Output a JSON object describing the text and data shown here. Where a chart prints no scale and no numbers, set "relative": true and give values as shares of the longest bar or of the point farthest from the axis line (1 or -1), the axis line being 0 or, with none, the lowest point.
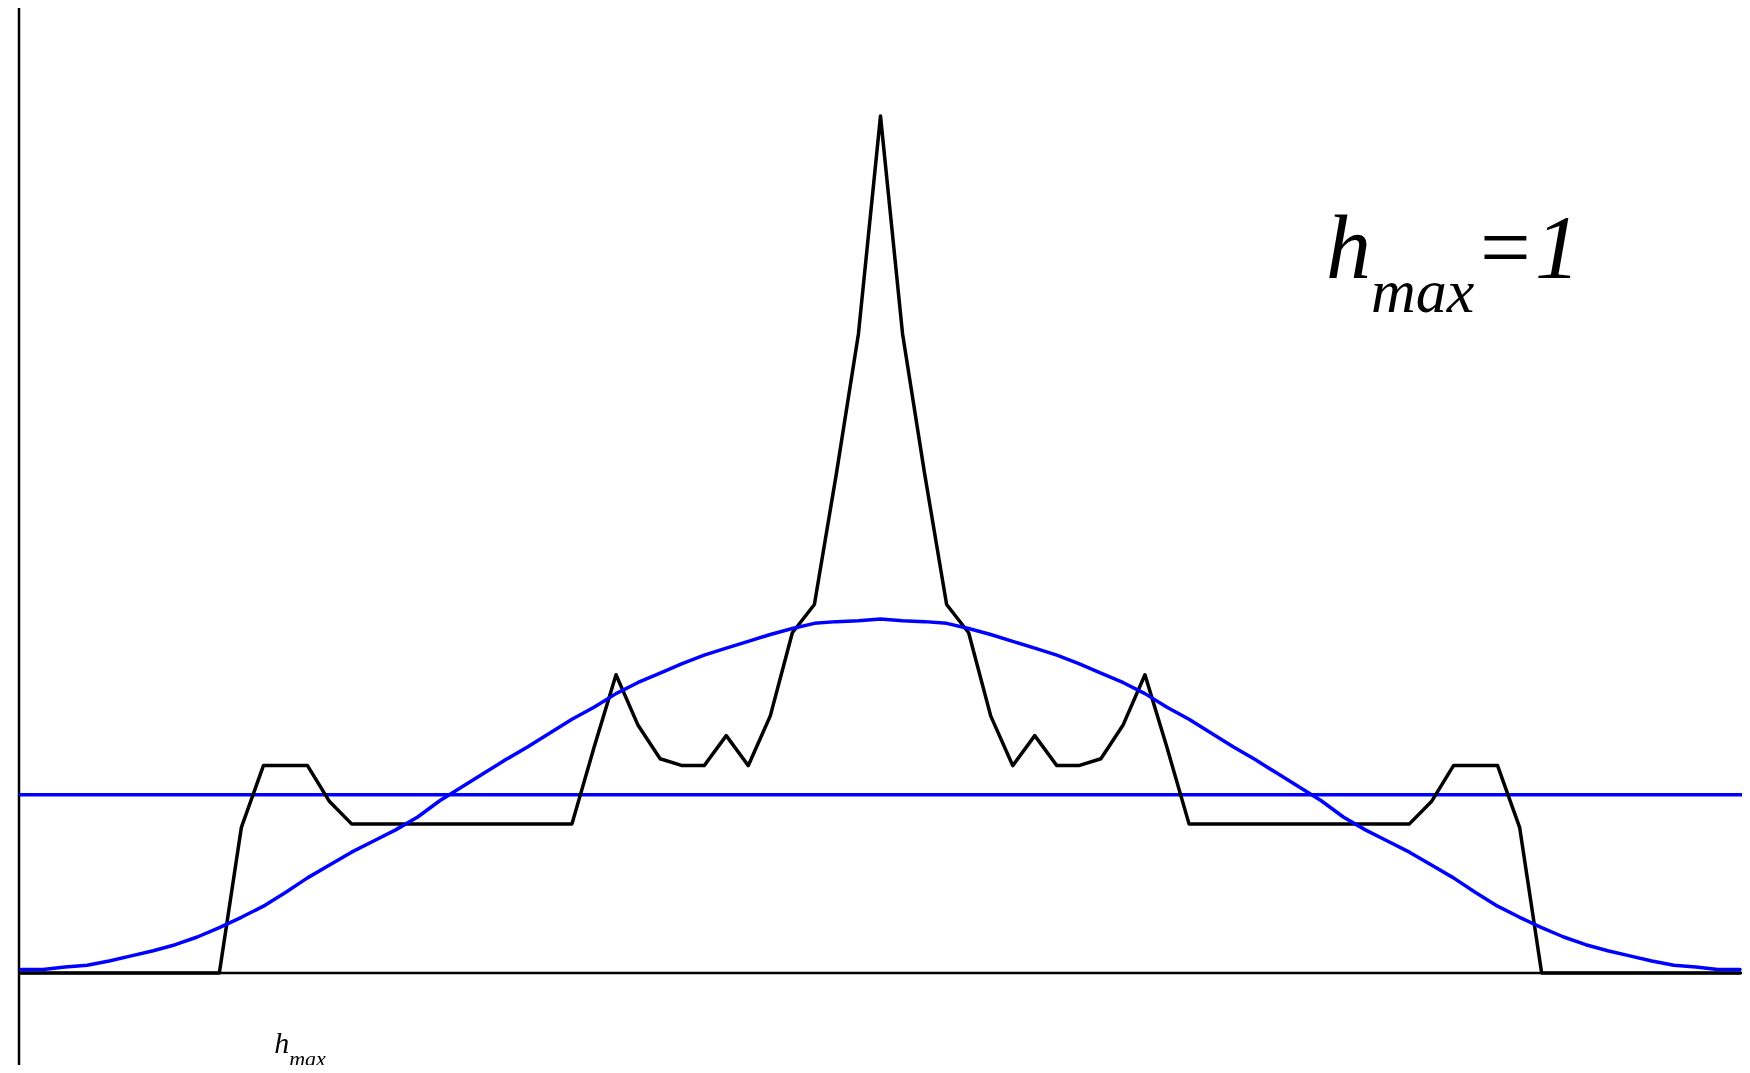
{
  "chart_data": {
    "type": "line",
    "relative": true,
    "categories": [
      null,
      null,
      null,
      null,
      null,
      null,
      null,
      null,
      null,
      null,
      null,
      null,
      null,
      null,
      null,
      null,
      null,
      null,
      null,
      null,
      null,
      null,
      null,
      null,
      null,
      null,
      null,
      null,
      null,
      null,
      null,
      null,
      null,
      null,
      null,
      null,
      null,
      null,
      null,
      null,
      null,
      null,
      null,
      null,
      null,
      null,
      null,
      null,
      null,
      null,
      null,
      null,
      null,
      null,
      null,
      null,
      null,
      null,
      null,
      null,
      null,
      null,
      null,
      null,
      null,
      null,
      null,
      null,
      null,
      null,
      null,
      null,
      null,
      null,
      null,
      null,
      null,
      null,
      null
    ],
    "series": [
      {
        "color": "#000000",
        "values": [
          0,
          0,
          0,
          0,
          0,
          0,
          0,
          0,
          0,
          0,
          0.17,
          0.242,
          0.242,
          0.242,
          0.2,
          0.174,
          0.174,
          0.174,
          0.174,
          0.174,
          0.174,
          0.174,
          0.174,
          0.174,
          0.174,
          0.174,
          0.263,
          0.348,
          0.289,
          0.25,
          0.242,
          0.242,
          0.277,
          0.242,
          0.3,
          0.397,
          0.43,
          0.583,
          0.746,
          1,
          0.746,
          0.583,
          0.43,
          0.397,
          0.3,
          0.242,
          0.277,
          0.242,
          0.242,
          0.25,
          0.289,
          0.348,
          0.263,
          0.174,
          0.174,
          0.174,
          0.174,
          0.174,
          0.174,
          0.174,
          0.174,
          0.174,
          0.174,
          0.174,
          0.2,
          0.242,
          0.242,
          0.242,
          0.17,
          0,
          0,
          0,
          0,
          0,
          0,
          0,
          0,
          0,
          0
        ]
      },
      {
        "color": "#0000ff",
        "values": [
          0.004,
          0.004,
          0.007,
          0.009,
          0.014,
          0.02,
          0.026,
          0.033,
          0.042,
          0.053,
          0.065,
          0.078,
          0.094,
          0.111,
          0.126,
          0.141,
          0.154,
          0.167,
          0.182,
          0.201,
          0.217,
          0.233,
          0.249,
          0.264,
          0.28,
          0.296,
          0.31,
          0.326,
          0.339,
          0.35,
          0.361,
          0.371,
          0.379,
          0.387,
          0.395,
          0.402,
          0.408,
          0.41,
          0.411,
          0.413,
          0.411,
          0.41,
          0.408,
          0.402,
          0.395,
          0.387,
          0.379,
          0.371,
          0.361,
          0.35,
          0.339,
          0.326,
          0.31,
          0.296,
          0.28,
          0.264,
          0.249,
          0.233,
          0.217,
          0.201,
          0.182,
          0.167,
          0.154,
          0.141,
          0.126,
          0.111,
          0.094,
          0.078,
          0.065,
          0.053,
          0.042,
          0.033,
          0.026,
          0.02,
          0.014,
          0.009,
          0.007,
          0.004,
          0.004
        ]
      }
    ],
    "ref_lines": [
      {
        "axis": "y",
        "value": 0.208,
        "color": "#0000ff"
      }
    ],
    "annotations": [
      "h$_{max}$=1",
      "h$_{max}$"
    ]
  }
}
